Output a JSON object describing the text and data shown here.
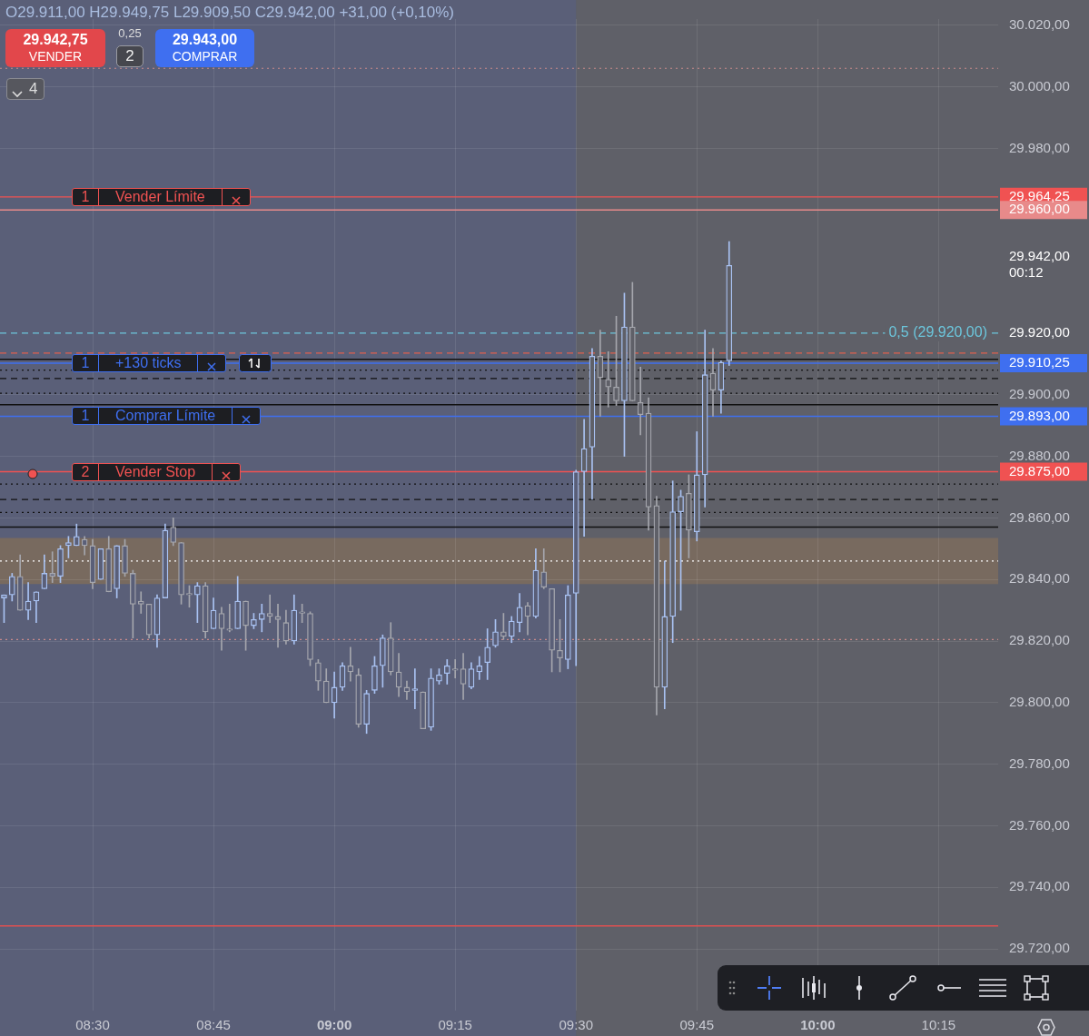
{
  "chart_data": {
    "type": "candlestick",
    "x": [
      8.3167,
      8.3333,
      8.35,
      8.3667,
      8.3833,
      8.4,
      8.4167,
      8.4333,
      8.45,
      8.4667,
      8.4833,
      8.5,
      8.5167,
      8.5333,
      8.55,
      8.5667,
      8.5833,
      8.6,
      8.6167,
      8.6333,
      8.65,
      8.6667,
      8.6833,
      8.7,
      8.7167,
      8.7333,
      8.75,
      8.7667,
      8.7833,
      8.8,
      8.8167,
      8.8333,
      8.85,
      8.8667,
      8.8833,
      8.9,
      8.9167,
      8.9333,
      8.95,
      8.9667,
      8.9833,
      9,
      9.0167,
      9.0333,
      9.05,
      9.0667,
      9.0833,
      9.1,
      9.1167,
      9.1333,
      9.15,
      9.1667,
      9.1833,
      9.2,
      9.2167,
      9.2333,
      9.25,
      9.2667,
      9.2833,
      9.3,
      9.3167,
      9.3333,
      9.35,
      9.3667,
      9.3833,
      9.4,
      9.4167,
      9.4333,
      9.45,
      9.4667,
      9.4833,
      9.5,
      9.5167,
      9.5333,
      9.55,
      9.5667,
      9.5833,
      9.6,
      9.6167,
      9.6333,
      9.65,
      9.6667,
      9.6833,
      9.7,
      9.7167,
      9.7333,
      9.75,
      9.7667,
      9.7833,
      9.8,
      9.8167
    ],
    "ohlc": [
      [
        29834,
        29835,
        29826,
        29835
      ],
      [
        29835,
        29842,
        29833,
        29841
      ],
      [
        29841,
        29848,
        29830,
        29830
      ],
      [
        29830,
        29839,
        29827,
        29833
      ],
      [
        29833,
        29836,
        29826,
        29836
      ],
      [
        29837,
        29848,
        29837,
        29842
      ],
      [
        29842,
        29849,
        29839,
        29841
      ],
      [
        29841,
        29851,
        29839,
        29850
      ],
      [
        29851,
        29854,
        29847,
        29852
      ],
      [
        29851,
        29858,
        29851,
        29854
      ],
      [
        29853,
        29854,
        29848,
        29851
      ],
      [
        29851,
        29853,
        29837,
        29839
      ],
      [
        29840,
        29850,
        29840,
        29850
      ],
      [
        29850,
        29854,
        29836,
        29836
      ],
      [
        29837,
        29851,
        29834,
        29851
      ],
      [
        29851,
        29853,
        29841,
        29842
      ],
      [
        29842,
        29843,
        29821,
        29832
      ],
      [
        29833,
        29836,
        29829,
        29832
      ],
      [
        29832,
        29832,
        29821,
        29822
      ],
      [
        29822,
        29835,
        29818,
        29834
      ],
      [
        29834,
        29858,
        29834,
        29856
      ],
      [
        29857,
        29860,
        29851,
        29852
      ],
      [
        29852,
        29852,
        29832,
        29835
      ],
      [
        29835.5,
        29838,
        29831,
        29835
      ],
      [
        29835,
        29839,
        29826,
        29838
      ],
      [
        29838,
        29839,
        29821,
        29823
      ],
      [
        29824,
        29834,
        29824,
        29830
      ],
      [
        29829,
        29831,
        29817,
        29824
      ],
      [
        29824,
        29832,
        29823,
        29823.5
      ],
      [
        29824,
        29841,
        29824,
        29833
      ],
      [
        29833,
        29833,
        29817,
        29825
      ],
      [
        29825,
        29829,
        29824,
        29827
      ],
      [
        29827,
        29832,
        29823,
        29829
      ],
      [
        29829,
        29835,
        29826,
        29828
      ],
      [
        29828,
        29832,
        29818,
        29827
      ],
      [
        29826,
        29830,
        29819,
        29820
      ],
      [
        29820,
        29835,
        29819,
        29830
      ],
      [
        29829.5,
        29832,
        29826,
        29829
      ],
      [
        29829,
        29829.5,
        29812,
        29814
      ],
      [
        29813,
        29814,
        29804,
        29807
      ],
      [
        29807,
        29811,
        29800,
        29800
      ],
      [
        29800,
        29810,
        29795,
        29805
      ],
      [
        29805,
        29813,
        29804,
        29812
      ],
      [
        29812,
        29818,
        29807,
        29810
      ],
      [
        29809,
        29811,
        29792,
        29793
      ],
      [
        29793,
        29804,
        29790,
        29803
      ],
      [
        29804,
        29815,
        29803,
        29812
      ],
      [
        29812,
        29822,
        29805,
        29821
      ],
      [
        29821,
        29826,
        29809,
        29810
      ],
      [
        29810,
        29816,
        29802,
        29805
      ],
      [
        29805,
        29807,
        29801,
        29803.5
      ],
      [
        29804,
        29811,
        29798,
        29804.5
      ],
      [
        29803.5,
        29803.5,
        29791.5,
        29791.5
      ],
      [
        29792,
        29811,
        29791,
        29808
      ],
      [
        29807,
        29811,
        29806,
        29809
      ],
      [
        29809.5,
        29814,
        29806,
        29812
      ],
      [
        29811,
        29814,
        29808,
        29810.5
      ],
      [
        29811,
        29816,
        29801,
        29806
      ],
      [
        29805,
        29813,
        29804.5,
        29811
      ],
      [
        29810,
        29815,
        29807.5,
        29812
      ],
      [
        29813,
        29824,
        29807.5,
        29818
      ],
      [
        29818.5,
        29827,
        29818,
        29823
      ],
      [
        29823,
        29829,
        29820.5,
        29821.5
      ],
      [
        29821.5,
        29828,
        29819.5,
        29826.5
      ],
      [
        29826,
        29835.5,
        29823,
        29831
      ],
      [
        29831.5,
        29832.5,
        29822,
        29828
      ],
      [
        29828,
        29850,
        29827.5,
        29843
      ],
      [
        29842.5,
        29850,
        29837,
        29837.5
      ],
      [
        29837,
        29837,
        29810,
        29817
      ],
      [
        29817,
        29827,
        29810,
        29814.5
      ],
      [
        29814,
        29838,
        29811,
        29835
      ],
      [
        29835.5,
        29875.5,
        29812,
        29875
      ],
      [
        29875,
        29892,
        29854,
        29882.5
      ],
      [
        29883,
        29915,
        29866,
        29912.5
      ],
      [
        29912.5,
        29921,
        29893,
        29905.5
      ],
      [
        29905,
        29914,
        29896,
        29902.5
      ],
      [
        29902.5,
        29925.5,
        29896.5,
        29898
      ],
      [
        29898,
        29933,
        29880,
        29922
      ],
      [
        29922,
        29936.5,
        29898,
        29898
      ],
      [
        29897.5,
        29909,
        29887,
        29893.5
      ],
      [
        29894,
        29899,
        29856,
        29863.5
      ],
      [
        29864,
        29867,
        29796,
        29805
      ],
      [
        29805,
        29846,
        29798,
        29828
      ],
      [
        29828,
        29872,
        29819.5,
        29862
      ],
      [
        29862,
        29869,
        29830,
        29867
      ],
      [
        29868,
        29874,
        29847,
        29856
      ],
      [
        29855.5,
        29888,
        29852.5,
        29874
      ],
      [
        29874,
        29921,
        29863.5,
        29906.5
      ],
      [
        29907,
        29915,
        29893,
        29901.5
      ],
      [
        29901.5,
        29911,
        29894,
        29910.5
      ],
      [
        29911,
        29949.75,
        29909.5,
        29942
      ]
    ],
    "colors": [
      "#a9c2f2",
      "#a9c2f2",
      "#a5a6ad",
      "#a9c2f2",
      "#a9c2f2",
      "#a9c2f2",
      "#a5a6ad",
      "#a9c2f2",
      "#a9c2f2",
      "#a9c2f2",
      "#a5a6ad",
      "#a5a6ad",
      "#a9c2f2",
      "#a5a6ad",
      "#a9c2f2",
      "#a5a6ad",
      "#a5a6ad",
      "#a5a6ad",
      "#a5a6ad",
      "#a9c2f2",
      "#a9c2f2",
      "#a5a6ad",
      "#a5a6ad",
      "#a5a6ad",
      "#a9c2f2",
      "#a5a6ad",
      "#a9c2f2",
      "#a5a6ad",
      "#a5a6ad",
      "#a9c2f2",
      "#a5a6ad",
      "#a9c2f2",
      "#a9c2f2",
      "#a5a6ad",
      "#a5a6ad",
      "#a5a6ad",
      "#a9c2f2",
      "#a5a6ad",
      "#a5a6ad",
      "#a5a6ad",
      "#a5a6ad",
      "#a9c2f2",
      "#a9c2f2",
      "#a5a6ad",
      "#a5a6ad",
      "#a9c2f2",
      "#a9c2f2",
      "#a9c2f2",
      "#a5a6ad",
      "#a5a6ad",
      "#a5a6ad",
      "#a9c2f2",
      "#a5a6ad",
      "#a9c2f2",
      "#a9c2f2",
      "#a9c2f2",
      "#a5a6ad",
      "#a5a6ad",
      "#a9c2f2",
      "#a9c2f2",
      "#a9c2f2",
      "#a9c2f2",
      "#a5a6ad",
      "#a9c2f2",
      "#a9c2f2",
      "#a5a6ad",
      "#a9c2f2",
      "#a5a6ad",
      "#a5a6ad",
      "#a5a6ad",
      "#a9c2f2",
      "#a9c2f2",
      "#a9c2f2",
      "#a9c2f2",
      "#a5a6ad",
      "#a5a6ad",
      "#a5a6ad",
      "#a9c2f2",
      "#a5a6ad",
      "#a5a6ad",
      "#a5a6ad",
      "#a5a6ad",
      "#a9c2f2",
      "#a9c2f2",
      "#a9c2f2",
      "#a5a6ad",
      "#a9c2f2",
      "#a9c2f2",
      "#a5a6ad",
      "#a9c2f2",
      "#a9c2f2"
    ],
    "xlim": [
      8.3083,
      10.3733
    ],
    "xticks": [
      {
        "value": 8.5,
        "label": "08:30"
      },
      {
        "value": 8.75,
        "label": "08:45"
      },
      {
        "value": 9,
        "label": "09:00"
      },
      {
        "value": 9.25,
        "label": "09:15"
      },
      {
        "value": 9.5,
        "label": "09:30"
      },
      {
        "value": 9.75,
        "label": "09:45"
      },
      {
        "value": 10,
        "label": "10:00"
      },
      {
        "value": 10.25,
        "label": "10:15"
      }
    ],
    "ylim": [
      29700,
      30022
    ],
    "yticks": [
      {
        "value": 29720,
        "label": "29.720,00"
      },
      {
        "value": 29740,
        "label": "29.740,00"
      },
      {
        "value": 29760,
        "label": "29.760,00"
      },
      {
        "value": 29780,
        "label": "29.780,00"
      },
      {
        "value": 29800,
        "label": "29.800,00"
      },
      {
        "value": 29820,
        "label": "29.820,00"
      },
      {
        "value": 29840,
        "label": "29.840,00"
      },
      {
        "value": 29860,
        "label": "29.860,00"
      },
      {
        "value": 29880,
        "label": "29.880,00"
      },
      {
        "value": 29900,
        "label": "29.900,00"
      },
      {
        "value": 29920,
        "label": "29.920,00"
      },
      {
        "value": 29980,
        "label": "29.980,00"
      },
      {
        "value": 30000,
        "label": "30.000,00"
      },
      {
        "value": 30020,
        "label": "30.020,00"
      },
      {
        "value": 29875,
        "label": "29.875,00"
      },
      {
        "value": 29893,
        "label": "29.893,00"
      },
      {
        "value": 29910.25,
        "label": "29.910,25"
      },
      {
        "value": 29942,
        "label": "29.942,00\n00:12"
      },
      {
        "value": 29960,
        "label": "29.960,00"
      },
      {
        "value": 29964.25,
        "label": "29.964,25"
      }
    ],
    "grid": true,
    "bands": [
      {
        "axis": "x",
        "from": 8.3083,
        "to": 9.5,
        "color": "#5a5f78"
      },
      {
        "axis": "y",
        "from": 29838.5,
        "to": 29853.5,
        "color": "#786a5f"
      }
    ],
    "ref_lines": [
      {
        "axis": "y",
        "value": 30006,
        "color": "#c98a8a",
        "line_style": "dotted"
      },
      {
        "axis": "y",
        "value": 29964.25,
        "color": "#f05252",
        "line_style": "solid",
        "label": "Vender Límite"
      },
      {
        "axis": "y",
        "value": 29960,
        "color": "#e88a8a",
        "line_style": "solid"
      },
      {
        "axis": "y",
        "value": 29920,
        "color": "#6cc6dc",
        "line_style": "dashed",
        "label": "0,5 (29.920,00)"
      },
      {
        "axis": "y",
        "value": 29913.5,
        "color": "#e0604e",
        "line_style": "dashed"
      },
      {
        "axis": "y",
        "value": 29911.5,
        "color": "#111111",
        "line_style": "solid"
      },
      {
        "axis": "y",
        "value": 29910.25,
        "color": "#3f6ff0",
        "line_style": "solid",
        "label": "+130 ticks"
      },
      {
        "axis": "y",
        "value": 29908,
        "color": "#111111",
        "line_style": "dotted"
      },
      {
        "axis": "y",
        "value": 29905.25,
        "color": "#111111",
        "line_style": "dashed"
      },
      {
        "axis": "y",
        "value": 29900.5,
        "color": "#111111",
        "line_style": "dotted"
      },
      {
        "axis": "y",
        "value": 29896.75,
        "color": "#111111",
        "line_style": "solid"
      },
      {
        "axis": "y",
        "value": 29893,
        "color": "#3f6ff0",
        "line_style": "solid",
        "label": "Comprar Límite"
      },
      {
        "axis": "y",
        "value": 29875,
        "color": "#f05252",
        "line_style": "solid",
        "label": "Vender Stop"
      },
      {
        "axis": "y",
        "value": 29871,
        "color": "#111111",
        "line_style": "dotted"
      },
      {
        "axis": "y",
        "value": 29866,
        "color": "#111111",
        "line_style": "dashed"
      },
      {
        "axis": "y",
        "value": 29861.75,
        "color": "#111111",
        "line_style": "dotted"
      },
      {
        "axis": "y",
        "value": 29857,
        "color": "#111111",
        "line_style": "solid"
      },
      {
        "axis": "y",
        "value": 29846,
        "color": "#ffffff",
        "line_style": "dotted"
      },
      {
        "axis": "y",
        "value": 29820.5,
        "color": "#c98a8a",
        "line_style": "dotted"
      },
      {
        "axis": "y",
        "value": 29727.5,
        "color": "#e05050",
        "line_style": "solid"
      }
    ],
    "annotations": [
      "O29.911,00 H29.949,75 L29.909,50 C29.942,00 +31,00 (+0,10%)",
      "29.942,75",
      "VENDER",
      "0,25",
      "2",
      "29.943,00",
      "COMPRAR",
      "4",
      {
        "text": "1",
        "y": 29964.25
      },
      {
        "text": "1",
        "y": 29910.25
      },
      {
        "text": "1",
        "y": 29893
      },
      {
        "text": "2",
        "y": 29875
      }
    ],
    "legend": false
  }
}
